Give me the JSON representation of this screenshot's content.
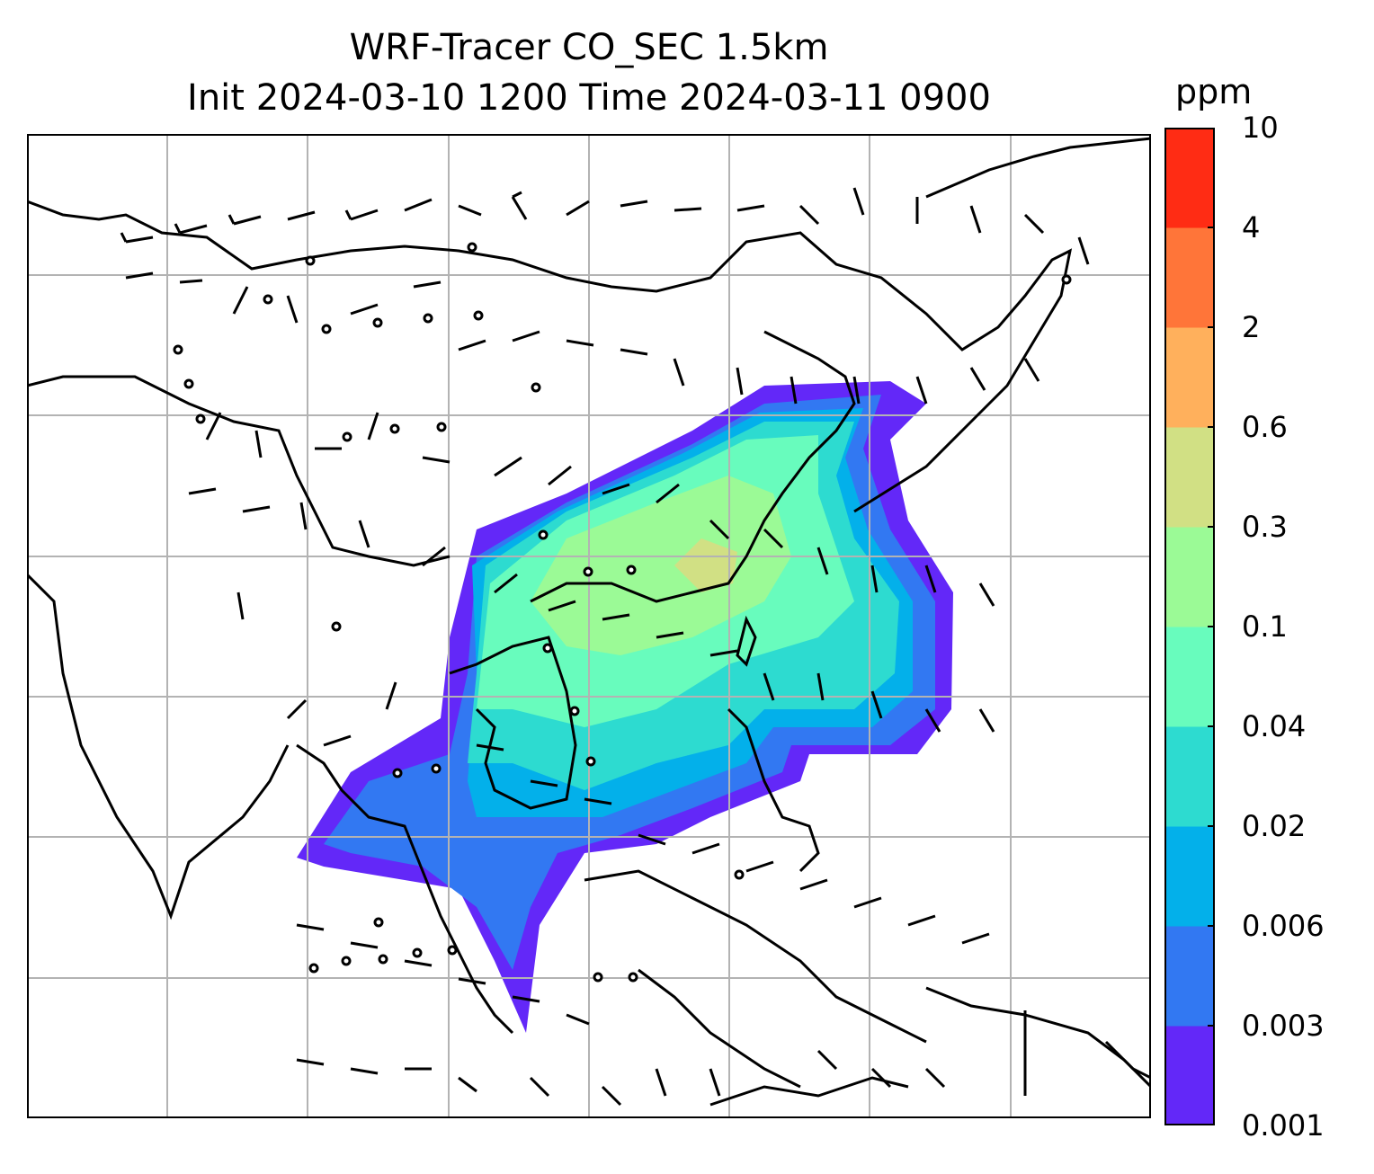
{
  "title": {
    "line1": "WRF-Tracer CO_SEC 1.5km",
    "line2": "Init 2024-03-10 1200 Time 2024-03-11 0900"
  },
  "colorbar": {
    "unit": "ppm",
    "levels": [
      "0.001",
      "0.003",
      "0.006",
      "0.02",
      "0.04",
      "0.1",
      "0.3",
      "0.6",
      "2",
      "4",
      "10"
    ],
    "colors": [
      "#6328f8",
      "#3278f2",
      "#03b0ea",
      "#2ddbd0",
      "#68fcbd",
      "#9bfa96",
      "#d1e084",
      "#ffb05c",
      "#ff7539",
      "#ff2c14"
    ]
  },
  "map": {
    "region": "East and Southeast Asia",
    "gridlines": true,
    "features": [
      "coastlines",
      "country borders",
      "wind barbs",
      "tracer concentration shading"
    ],
    "field": "CO_SEC tracer at 1.5 km"
  }
}
